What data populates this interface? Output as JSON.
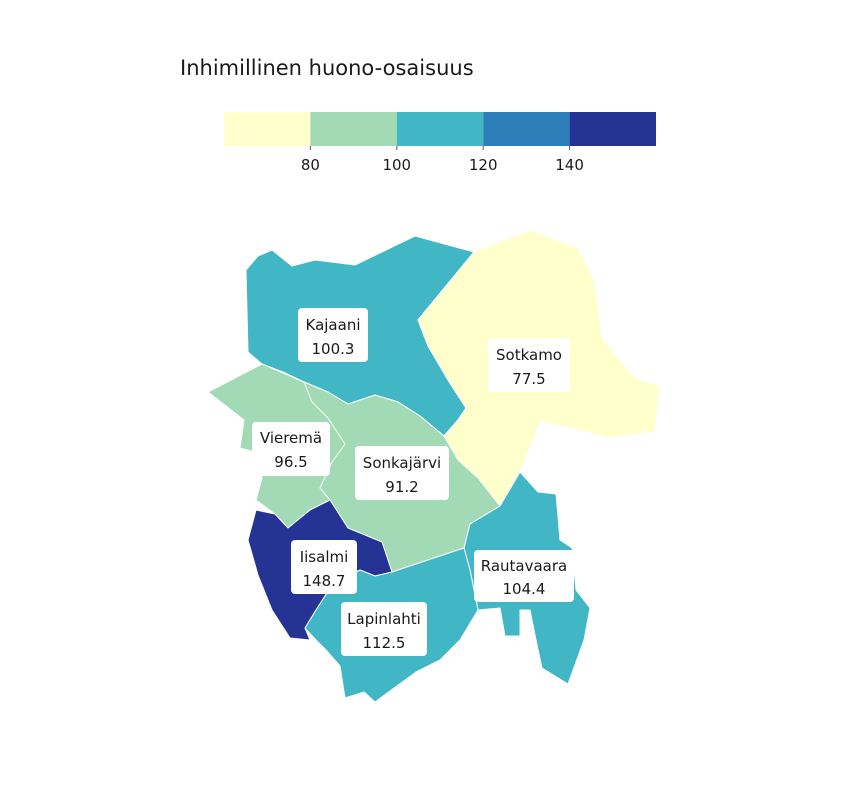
{
  "legend": {
    "title": "Inhimillinen huono-osaisuus",
    "bins": [
      {
        "color": "#ffffcc"
      },
      {
        "color": "#a1dab4"
      },
      {
        "color": "#41b6c4"
      },
      {
        "color": "#2c7fb8"
      },
      {
        "color": "#253494"
      }
    ],
    "ticks": [
      "80",
      "100",
      "120",
      "140"
    ]
  },
  "regions": [
    {
      "name": "Kajaani",
      "value": "100.3",
      "color": "#41b6c4"
    },
    {
      "name": "Sotkamo",
      "value": "77.5",
      "color": "#ffffcc"
    },
    {
      "name": "Vieremä",
      "value": "96.5",
      "color": "#a1dab4"
    },
    {
      "name": "Sonkajärvi",
      "value": "91.2",
      "color": "#a1dab4"
    },
    {
      "name": "Iisalmi",
      "value": "148.7",
      "color": "#253494"
    },
    {
      "name": "Rautavaara",
      "value": "104.4",
      "color": "#41b6c4"
    },
    {
      "name": "Lapinlahti",
      "value": "112.5",
      "color": "#41b6c4"
    }
  ]
}
